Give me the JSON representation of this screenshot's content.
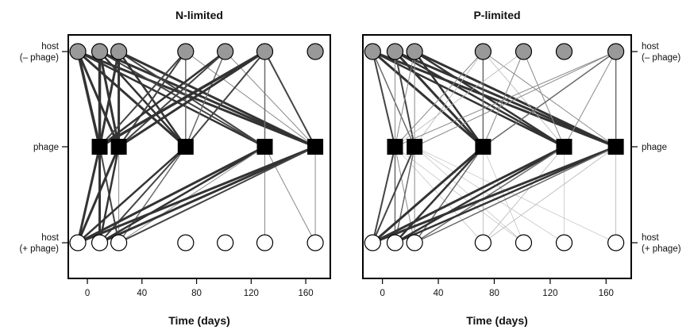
{
  "chart_data": [
    {
      "type": "network",
      "title": "N-limited",
      "xlabel": "Time (days)",
      "xlim": [
        -14,
        178
      ],
      "xticks": [
        0,
        40,
        80,
        120,
        160
      ],
      "row_labels": {
        "top": [
          "host",
          "(– phage)"
        ],
        "middle": [
          "phage"
        ],
        "bottom": [
          "host",
          "(+ phage)"
        ]
      },
      "host_minus_phage_days": [
        -7,
        9,
        23,
        72,
        101,
        130,
        167
      ],
      "phage_days": [
        9,
        23,
        72,
        130,
        167
      ],
      "host_plus_phage_days": [
        -7,
        9,
        23,
        72,
        101,
        130,
        167
      ],
      "links_top": [
        [
          -7,
          9,
          3.5
        ],
        [
          -7,
          23,
          3.0
        ],
        [
          -7,
          72,
          3.0
        ],
        [
          -7,
          130,
          2.5
        ],
        [
          -7,
          167,
          3.0
        ],
        [
          9,
          9,
          3.5
        ],
        [
          9,
          23,
          3.0
        ],
        [
          9,
          72,
          2.5
        ],
        [
          9,
          130,
          2.0
        ],
        [
          9,
          167,
          3.0
        ],
        [
          23,
          9,
          3.0
        ],
        [
          23,
          23,
          3.0
        ],
        [
          23,
          72,
          2.5
        ],
        [
          23,
          130,
          2.0
        ],
        [
          23,
          167,
          3.0
        ],
        [
          72,
          9,
          2.0
        ],
        [
          72,
          23,
          2.0
        ],
        [
          72,
          72,
          1.5
        ],
        [
          72,
          167,
          1.0
        ],
        [
          101,
          9,
          2.5
        ],
        [
          101,
          23,
          2.0
        ],
        [
          101,
          72,
          1.5
        ],
        [
          101,
          167,
          1.0
        ],
        [
          130,
          9,
          3.5
        ],
        [
          130,
          23,
          3.0
        ],
        [
          130,
          72,
          2.0
        ],
        [
          130,
          130,
          1.5
        ],
        [
          130,
          167,
          2.0
        ]
      ],
      "links_bottom": [
        [
          9,
          -7,
          3.0
        ],
        [
          9,
          9,
          3.0
        ],
        [
          9,
          23,
          2.0
        ],
        [
          23,
          -7,
          3.0
        ],
        [
          23,
          9,
          2.5
        ],
        [
          23,
          23,
          1.0
        ],
        [
          72,
          -7,
          2.5
        ],
        [
          72,
          9,
          2.0
        ],
        [
          72,
          23,
          1.5
        ],
        [
          130,
          -7,
          3.0
        ],
        [
          130,
          9,
          2.5
        ],
        [
          130,
          23,
          1.0
        ],
        [
          130,
          130,
          1.0
        ],
        [
          130,
          167,
          1.0
        ],
        [
          167,
          -7,
          3.0
        ],
        [
          167,
          9,
          3.0
        ],
        [
          167,
          23,
          2.0
        ],
        [
          167,
          167,
          1.0
        ]
      ]
    },
    {
      "type": "network",
      "title": "P-limited",
      "xlabel": "Time (days)",
      "xlim": [
        -14,
        178
      ],
      "xticks": [
        0,
        40,
        80,
        120,
        160
      ],
      "row_labels": {
        "top": [
          "host",
          "(– phage)"
        ],
        "middle": [
          "phage"
        ],
        "bottom": [
          "host",
          "(+ phage)"
        ]
      },
      "host_minus_phage_days": [
        -7,
        9,
        23,
        72,
        101,
        130,
        167
      ],
      "phage_days": [
        9,
        23,
        72,
        130,
        167
      ],
      "host_plus_phage_days": [
        -7,
        9,
        23,
        72,
        101,
        130,
        167
      ],
      "links_top": [
        [
          -7,
          9,
          2.0
        ],
        [
          -7,
          23,
          1.5
        ],
        [
          -7,
          72,
          3.0
        ],
        [
          -7,
          130,
          2.5
        ],
        [
          -7,
          167,
          3.0
        ],
        [
          9,
          9,
          1.0
        ],
        [
          9,
          23,
          2.0
        ],
        [
          9,
          72,
          3.0
        ],
        [
          9,
          130,
          2.5
        ],
        [
          9,
          167,
          3.0
        ],
        [
          23,
          9,
          1.0
        ],
        [
          23,
          23,
          1.0
        ],
        [
          23,
          72,
          2.5
        ],
        [
          23,
          130,
          2.5
        ],
        [
          23,
          167,
          3.0
        ],
        [
          72,
          9,
          1.0
        ],
        [
          72,
          23,
          0.8
        ],
        [
          72,
          72,
          1.5
        ],
        [
          72,
          130,
          0.8
        ],
        [
          72,
          167,
          1.0
        ],
        [
          101,
          9,
          0.8
        ],
        [
          101,
          72,
          1.0
        ],
        [
          101,
          130,
          1.0
        ],
        [
          167,
          9,
          1.0
        ],
        [
          167,
          23,
          1.0
        ],
        [
          167,
          72,
          1.5
        ],
        [
          167,
          130,
          1.0
        ],
        [
          167,
          167,
          1.5
        ]
      ],
      "links_bottom": [
        [
          9,
          -7,
          2.0
        ],
        [
          9,
          9,
          1.5
        ],
        [
          9,
          23,
          1.0
        ],
        [
          9,
          72,
          0.6
        ],
        [
          9,
          101,
          0.6
        ],
        [
          23,
          -7,
          2.0
        ],
        [
          23,
          9,
          1.5
        ],
        [
          23,
          23,
          1.0
        ],
        [
          23,
          101,
          0.6
        ],
        [
          23,
          130,
          0.6
        ],
        [
          23,
          167,
          0.6
        ],
        [
          72,
          -7,
          3.0
        ],
        [
          72,
          9,
          2.5
        ],
        [
          72,
          23,
          1.5
        ],
        [
          72,
          72,
          0.8
        ],
        [
          72,
          101,
          0.6
        ],
        [
          130,
          -7,
          3.0
        ],
        [
          130,
          9,
          2.5
        ],
        [
          130,
          23,
          1.5
        ],
        [
          130,
          72,
          0.8
        ],
        [
          130,
          130,
          0.6
        ],
        [
          167,
          -7,
          3.0
        ],
        [
          167,
          9,
          2.5
        ],
        [
          167,
          23,
          1.5
        ],
        [
          167,
          72,
          0.8
        ],
        [
          167,
          167,
          0.8
        ]
      ]
    }
  ]
}
